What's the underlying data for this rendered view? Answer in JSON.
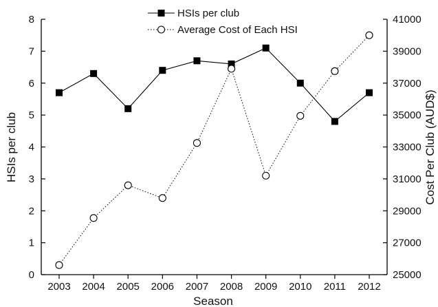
{
  "chart_data": {
    "type": "line",
    "title": "",
    "xlabel": "Season",
    "ylabel": "HSIs per club",
    "y2label": "Cost Per Club (AUD$)",
    "x": [
      2003,
      2004,
      2005,
      2006,
      2007,
      2008,
      2009,
      2010,
      2011,
      2012
    ],
    "ylim": [
      0,
      8
    ],
    "y2lim": [
      25000,
      41000
    ],
    "yticks": [
      0,
      1,
      2,
      3,
      4,
      5,
      6,
      7,
      8
    ],
    "y2ticks": [
      25000,
      27000,
      29000,
      31000,
      33000,
      35000,
      37000,
      39000,
      41000
    ],
    "grid": false,
    "legend_position": "top-center",
    "series": [
      {
        "name": "HSIs per club",
        "axis": "left",
        "marker": "filled-square",
        "line_style": "solid",
        "color": "#000000",
        "values": [
          5.7,
          6.3,
          5.2,
          6.4,
          6.7,
          6.6,
          7.1,
          6.0,
          4.8,
          5.7
        ]
      },
      {
        "name": "Average Cost of Each HSI",
        "axis": "right",
        "marker": "open-circle",
        "line_style": "dotted",
        "color": "#000000",
        "values": [
          25600,
          28550,
          30600,
          29800,
          33250,
          37900,
          31200,
          34950,
          37750,
          40000
        ]
      }
    ]
  }
}
